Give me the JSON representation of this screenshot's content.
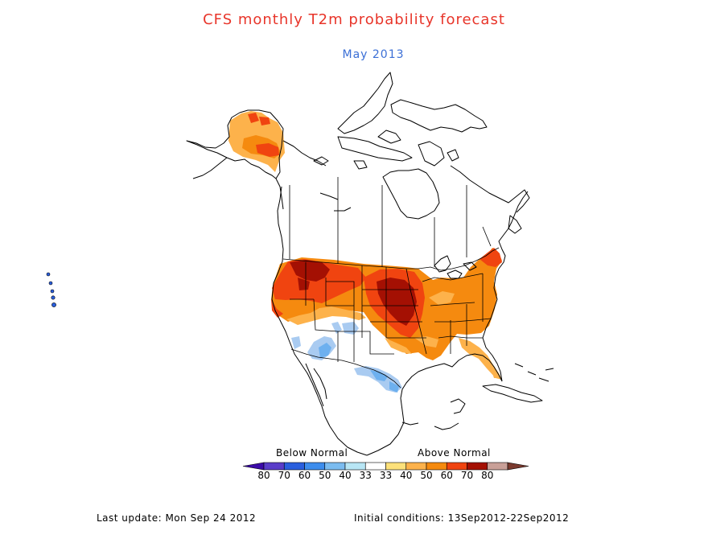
{
  "title": "CFS monthly T2m probability forecast",
  "subtitle": "May 2013",
  "colors": {
    "title": "#e8352a",
    "subtitle": "#3b6fd6",
    "a40": "#fdb24b",
    "a50": "#f58a0f",
    "a60": "#f04410",
    "a70": "#a41003",
    "b40": "#a9cbf1",
    "b50": "#6db0ef"
  },
  "legend": {
    "below_label": "Below Normal",
    "above_label": "Above Normal",
    "tick_labels": [
      "80",
      "70",
      "60",
      "50",
      "40",
      "33",
      "33",
      "40",
      "50",
      "60",
      "70",
      "80"
    ],
    "colors": [
      "#3b0aa8",
      "#5a3dc9",
      "#2a5fde",
      "#3d8ded",
      "#7bbcf0",
      "#b8e6f5",
      "#ffffff",
      "#fde17a",
      "#fdb24b",
      "#f58a0f",
      "#f04410",
      "#a41003",
      "#c9a098",
      "#7a3a2e"
    ]
  },
  "footer": {
    "last_update": "Last update: Mon Sep 24 2012",
    "initial_conditions": "Initial conditions: 13Sep2012-22Sep2012"
  }
}
